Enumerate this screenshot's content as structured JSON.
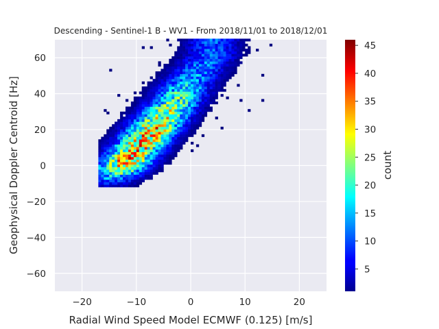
{
  "chart_data": {
    "type": "heatmap",
    "title": "Descending - Sentinel-1 B - WV1 - From 2018/11/01 to 2018/12/01",
    "xlabel": "Radial Wind Speed Model ECMWF (0.125) [m/s]",
    "ylabel": "Geophysical Doppler Centroid [Hz]",
    "xlim": [
      -25,
      25
    ],
    "ylim": [
      -70,
      70
    ],
    "xticks": [
      -20,
      -10,
      0,
      10,
      20
    ],
    "xtick_labels": [
      "−20",
      "−10",
      "0",
      "10",
      "20"
    ],
    "yticks": [
      -60,
      -40,
      -20,
      0,
      20,
      40,
      60
    ],
    "ytick_labels": [
      "−60",
      "−40",
      "−20",
      "0",
      "20",
      "40",
      "60"
    ],
    "grid": true,
    "colorbar": {
      "label": "count",
      "min": 1,
      "max": 46,
      "ticks": [
        5,
        10,
        15,
        20,
        25,
        30,
        35,
        40,
        45
      ],
      "colormap": "jet"
    },
    "density_ridge": [
      {
        "x": -7,
        "y": 20,
        "peak_count": 31
      },
      {
        "x": -3,
        "y": 35,
        "peak_count": 22
      },
      {
        "x": 0,
        "y": 48,
        "peak_count": 14
      },
      {
        "x": 4,
        "y": 62,
        "peak_count": 10
      }
    ],
    "data_extent": {
      "x_min": -17,
      "x_max": 15,
      "y_min": -12,
      "y_max": 70
    }
  },
  "colors": {
    "plot_background": "#eaeaf2",
    "grid": "#ffffff",
    "text": "#262626"
  }
}
